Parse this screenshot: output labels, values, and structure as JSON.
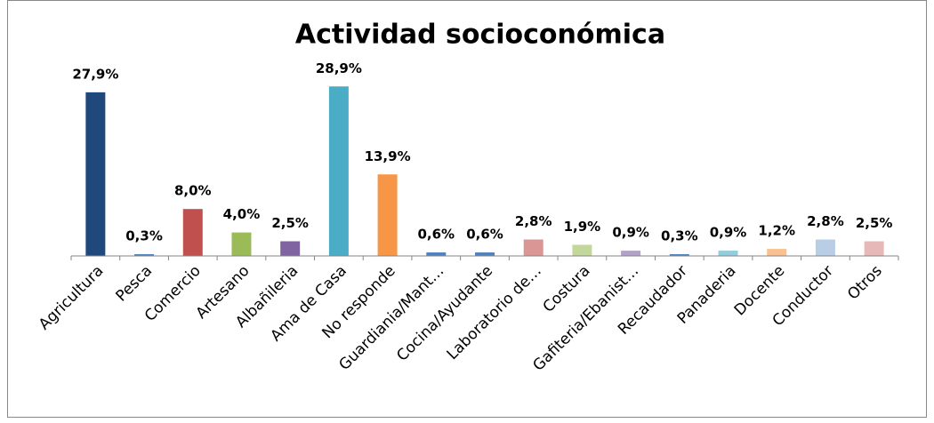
{
  "chart_data": {
    "type": "bar",
    "title": "Actividad socioconómica",
    "categories": [
      "Agricultura",
      "Pesca",
      "Comercio",
      "Artesano",
      "Albañileria",
      "Ama de Casa",
      "No responde",
      "Guardiania/Mant…",
      "Cocina/Ayudante",
      "Laboratorio de…",
      "Costura",
      "Gafiteria/Ebanist…",
      "Recaudador",
      "Panaderia",
      "Docente",
      "Conductor",
      "Otros"
    ],
    "values": [
      27.9,
      0.3,
      8.0,
      4.0,
      2.5,
      28.9,
      13.9,
      0.6,
      0.6,
      2.8,
      1.9,
      0.9,
      0.3,
      0.9,
      1.2,
      2.8,
      2.5
    ],
    "value_labels": [
      "27,9%",
      "0,3%",
      "8,0%",
      "4,0%",
      "2,5%",
      "28,9%",
      "13,9%",
      "0,6%",
      "0,6%",
      "2,8%",
      "1,9%",
      "0,9%",
      "0,3%",
      "0,9%",
      "1,2%",
      "2,8%",
      "2,5%"
    ],
    "colors": [
      "#1f497d",
      "#4f81bd",
      "#c0504d",
      "#9bbb59",
      "#8064a2",
      "#4bacc6",
      "#f79646",
      "#4f81bd",
      "#4f81bd",
      "#d99694",
      "#c3d69b",
      "#b3a2c7",
      "#4f81bd",
      "#93cddd",
      "#fac090",
      "#b9cde5",
      "#e6b9b8"
    ],
    "ylim": [
      0,
      30
    ]
  }
}
